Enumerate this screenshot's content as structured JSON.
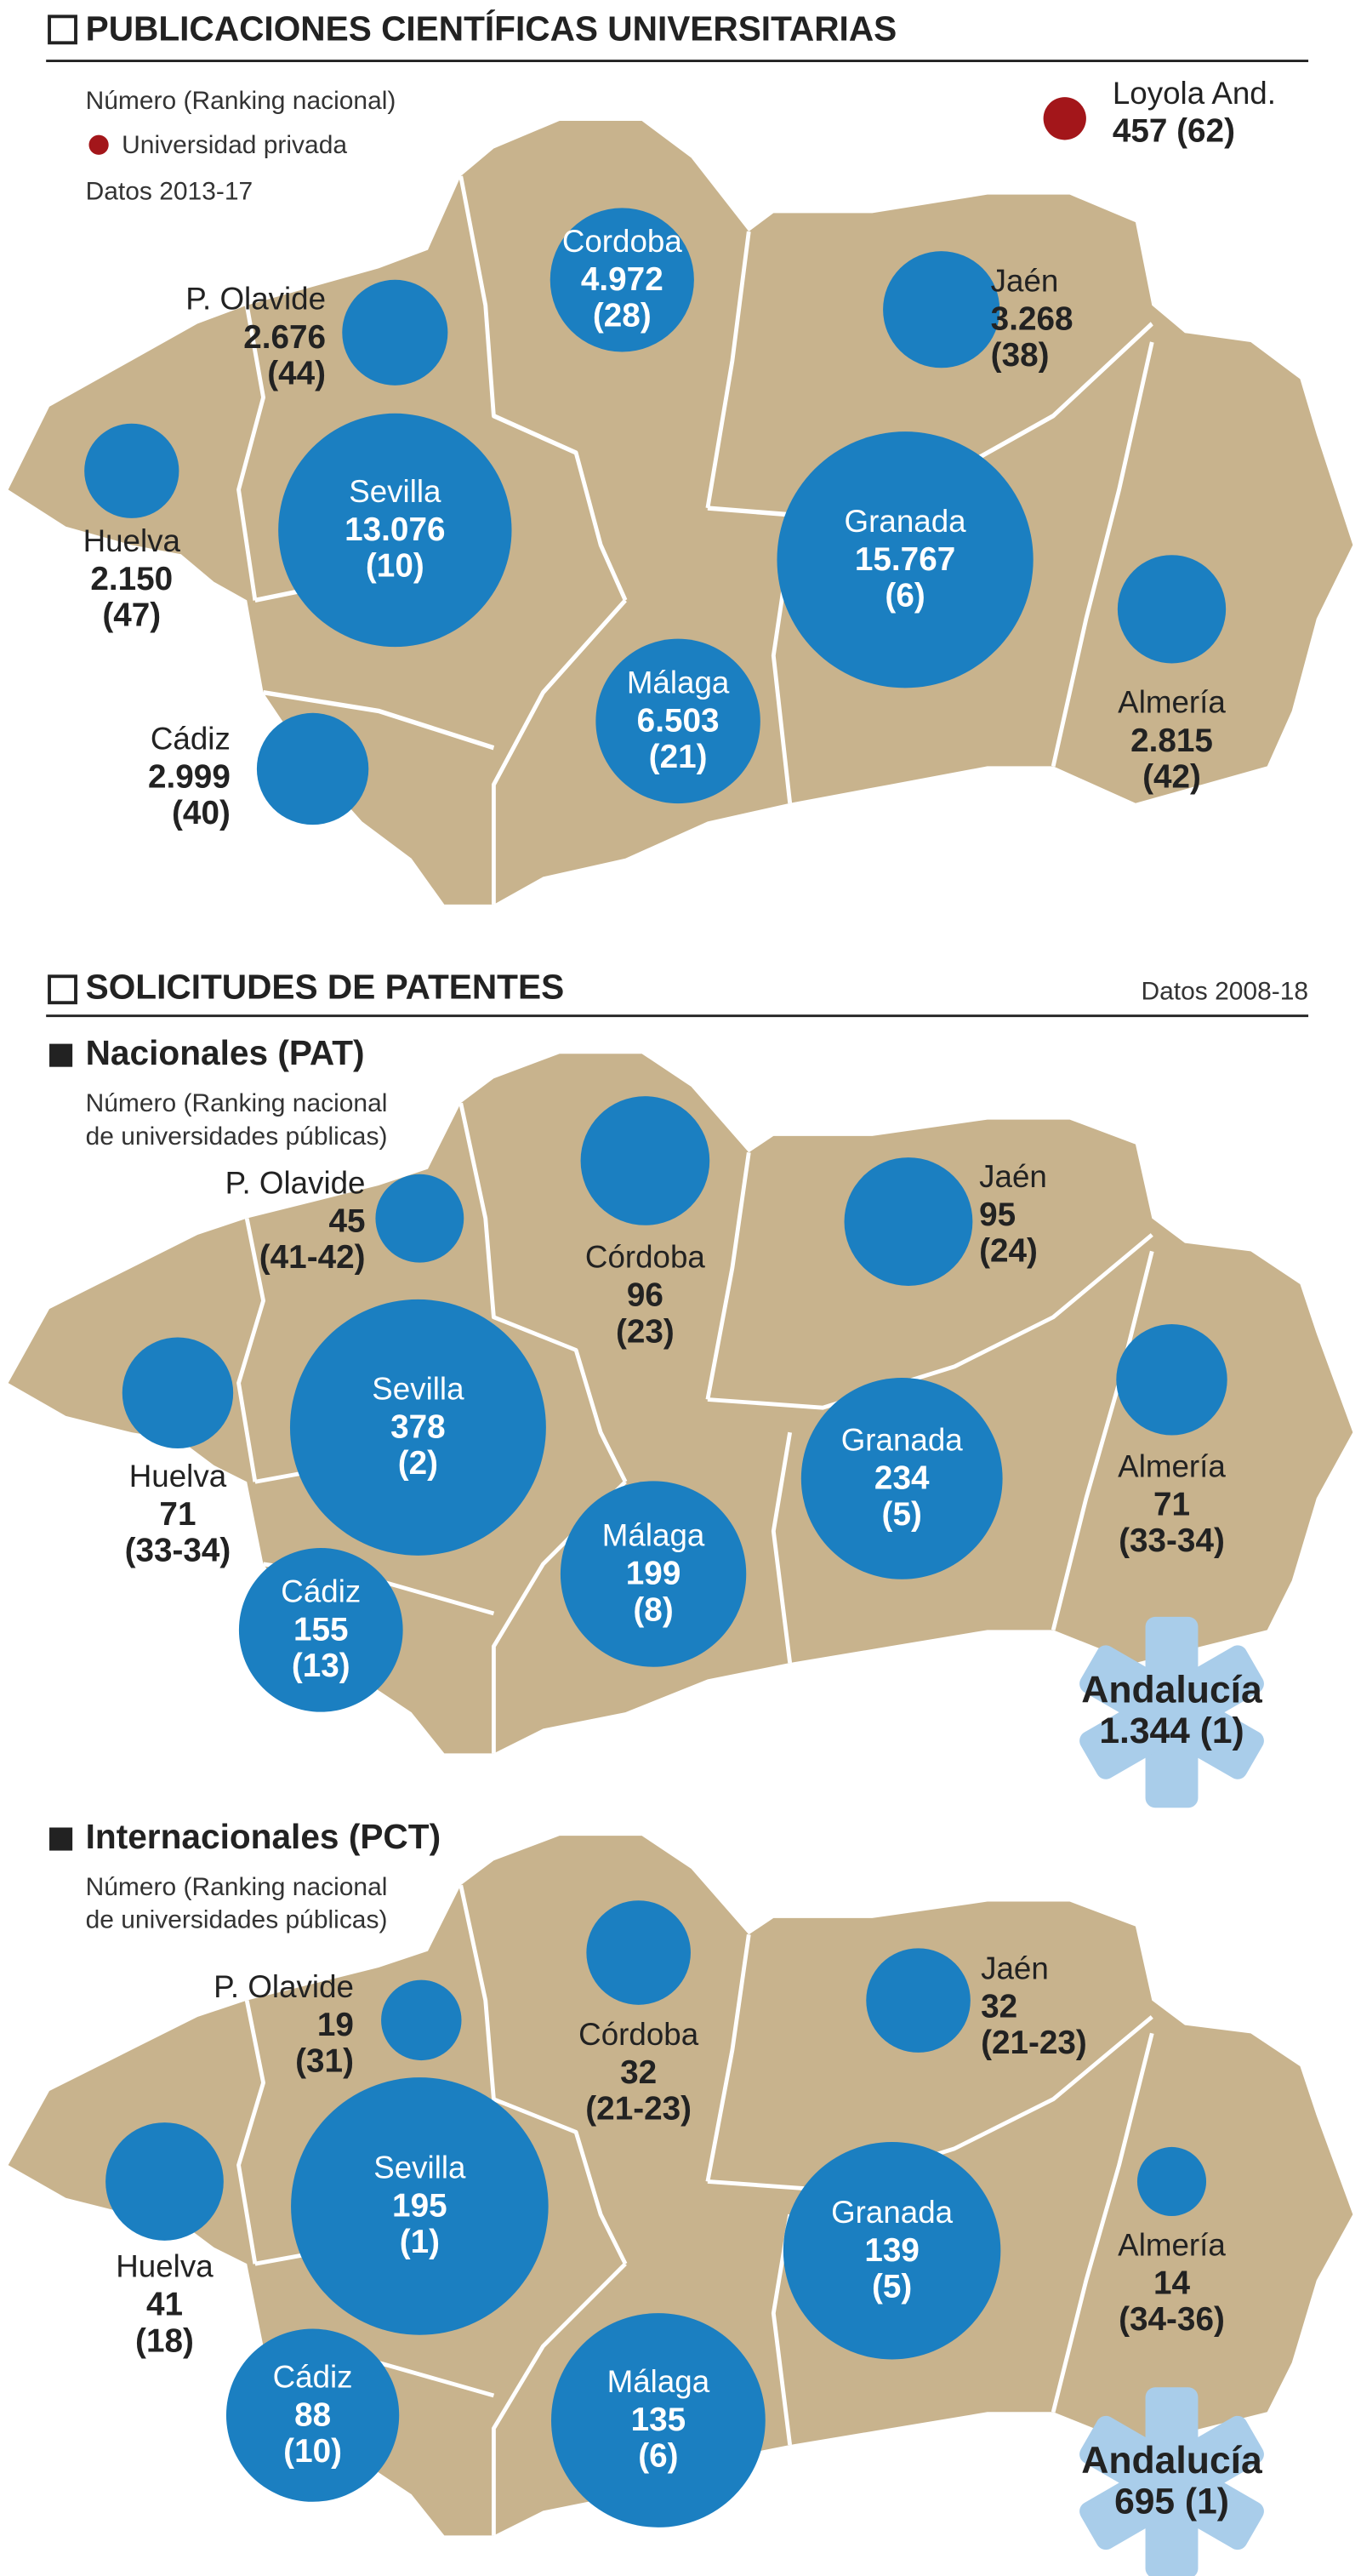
{
  "publications": {
    "title": "PUBLICACIONES CIENTÍFICAS UNIVERSITARIAS",
    "legend_note": "Número (Ranking nacional)",
    "private_label": "Universidad privada",
    "period": "Datos 2013-17",
    "items": [
      {
        "name": "Sevilla",
        "value": 13076,
        "value_label": "13.076",
        "rank": "(10)"
      },
      {
        "name": "Granada",
        "value": 15767,
        "value_label": "15.767",
        "rank": "(6)"
      },
      {
        "name": "Málaga",
        "value": 6503,
        "value_label": "6.503",
        "rank": "(21)"
      },
      {
        "name": "Cordoba",
        "value": 4972,
        "value_label": "4.972",
        "rank": "(28)"
      },
      {
        "name": "Cádiz",
        "value": 2999,
        "value_label": "2.999",
        "rank": "(40)"
      },
      {
        "name": "Jaén",
        "value": 3268,
        "value_label": "3.268",
        "rank": "(38)"
      },
      {
        "name": "P. Olavide",
        "value": 2676,
        "value_label": "2.676",
        "rank": "(44)"
      },
      {
        "name": "Almería",
        "value": 2815,
        "value_label": "2.815",
        "rank": "(42)"
      },
      {
        "name": "Huelva",
        "value": 2150,
        "value_label": "2.150",
        "rank": "(47)"
      }
    ],
    "private": {
      "name": "Loyola And.",
      "value": 457,
      "rank": "(62)"
    }
  },
  "patents": {
    "title": "SOLICITUDES DE PATENTES",
    "period": "Datos 2008-18",
    "panels": [
      {
        "title": "Nacionales",
        "code": "(PAT)",
        "note_lines": [
          "Número (Ranking nacional",
          "de universidades públicas)"
        ],
        "items": [
          {
            "name": "Sevilla",
            "value": 378,
            "rank": "(2)"
          },
          {
            "name": "Granada",
            "value": 234,
            "rank": "(5)"
          },
          {
            "name": "Málaga",
            "value": 199,
            "rank": "(8)"
          },
          {
            "name": "Córdoba",
            "value": 96,
            "rank": "(23)"
          },
          {
            "name": "Cádiz",
            "value": 155,
            "rank": "(13)"
          },
          {
            "name": "Jaén",
            "value": 95,
            "rank": "(24)"
          },
          {
            "name": "P. Olavide",
            "value": 45,
            "rank": "(41-42)"
          },
          {
            "name": "Almería",
            "value": 71,
            "rank": "(33-34)"
          },
          {
            "name": "Huelva",
            "value": 71,
            "rank": "(33-34)"
          }
        ],
        "total": {
          "name": "Andalucía",
          "value": 1344,
          "value_label": "1.344",
          "rank": "(1)"
        }
      },
      {
        "title": "Internacionales",
        "code": "(PCT)",
        "note_lines": [
          "Número (Ranking nacional",
          "de universidades públicas)"
        ],
        "items": [
          {
            "name": "Sevilla",
            "value": 195,
            "rank": "(1)"
          },
          {
            "name": "Granada",
            "value": 139,
            "rank": "(5)"
          },
          {
            "name": "Málaga",
            "value": 135,
            "rank": "(6)"
          },
          {
            "name": "Córdoba",
            "value": 32,
            "rank": "(21-23)"
          },
          {
            "name": "Cádiz",
            "value": 88,
            "rank": "(10)"
          },
          {
            "name": "Jaén",
            "value": 32,
            "rank": "(21-23)"
          },
          {
            "name": "P. Olavide",
            "value": 19,
            "rank": "(31)"
          },
          {
            "name": "Almería",
            "value": 14,
            "rank": "(34-36)"
          },
          {
            "name": "Huelva",
            "value": 41,
            "rank": "(18)"
          }
        ],
        "total": {
          "name": "Andalucía",
          "value": 695,
          "rank": "(1)"
        }
      }
    ]
  }
}
